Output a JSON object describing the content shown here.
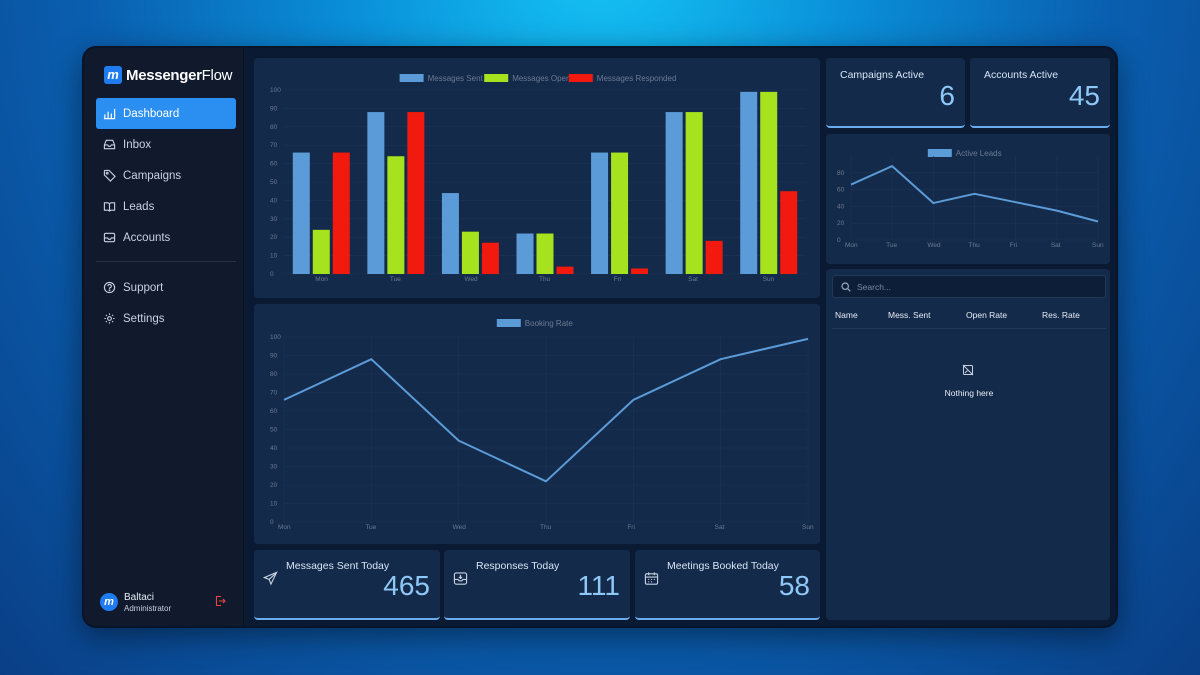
{
  "app": {
    "logo_bold": "Messenger",
    "logo_light": "Flow",
    "logo_mark": "m"
  },
  "nav": {
    "items": [
      {
        "label": "Dashboard",
        "icon": "bar-chart-icon",
        "active": true
      },
      {
        "label": "Inbox",
        "icon": "inbox-icon"
      },
      {
        "label": "Campaigns",
        "icon": "tag-icon"
      },
      {
        "label": "Leads",
        "icon": "book-icon"
      },
      {
        "label": "Accounts",
        "icon": "inbox-tray-icon"
      }
    ],
    "secondary": [
      {
        "label": "Support",
        "icon": "help-circle-icon"
      },
      {
        "label": "Settings",
        "icon": "gear-icon"
      }
    ]
  },
  "user": {
    "name": "Baltaci",
    "role": "Administrator",
    "initial": "m"
  },
  "stats": {
    "campaigns_active": {
      "label": "Campaigns Active",
      "value": "6"
    },
    "accounts_active": {
      "label": "Accounts Active",
      "value": "45"
    },
    "messages_sent_today": {
      "label": "Messages Sent Today",
      "value": "465"
    },
    "responses_today": {
      "label": "Responses Today",
      "value": "111"
    },
    "meetings_booked_today": {
      "label": "Meetings Booked Today",
      "value": "58"
    }
  },
  "leads_table": {
    "search_placeholder": "Search...",
    "columns": [
      "Name",
      "Mess. Sent",
      "Open Rate",
      "Res. Rate"
    ],
    "empty_text": "Nothing here"
  },
  "colors": {
    "sent": "#5b9bd8",
    "open": "#a6e31e",
    "responded": "#f2190e",
    "line": "#5b9bd8"
  },
  "chart_data": [
    {
      "type": "bar",
      "categories": [
        "Mon",
        "Tue",
        "Wed",
        "Thu",
        "Fri",
        "Sat",
        "Sun"
      ],
      "series": [
        {
          "name": "Messages Sent",
          "values": [
            66,
            88,
            44,
            22,
            66,
            88,
            99
          ]
        },
        {
          "name": "Messages Open",
          "values": [
            24,
            64,
            23,
            22,
            66,
            88,
            99
          ]
        },
        {
          "name": "Messages Responded",
          "values": [
            66,
            88,
            17,
            4,
            3,
            18,
            45
          ]
        }
      ],
      "ylim": [
        0,
        100
      ],
      "yticks": [
        0,
        10,
        20,
        30,
        40,
        50,
        60,
        70,
        80,
        90,
        100
      ],
      "legend": "top-center"
    },
    {
      "type": "line",
      "categories": [
        "Mon",
        "Tue",
        "Wed",
        "Thu",
        "Fri",
        "Sat",
        "Sun"
      ],
      "series": [
        {
          "name": "Booking Rate",
          "values": [
            66,
            88,
            44,
            22,
            66,
            88,
            99
          ]
        }
      ],
      "ylim": [
        0,
        100
      ],
      "yticks": [
        0,
        10,
        20,
        30,
        40,
        50,
        60,
        70,
        80,
        90,
        100
      ],
      "legend": "top-center"
    },
    {
      "type": "line",
      "categories": [
        "Mon",
        "Tue",
        "Wed",
        "Thu",
        "Fri",
        "Sat",
        "Sun"
      ],
      "series": [
        {
          "name": "Active Leads",
          "values": [
            66,
            88,
            44,
            55,
            45,
            35,
            22
          ]
        }
      ],
      "ylim": [
        0,
        100
      ],
      "yticks": [
        0,
        20,
        40,
        60,
        80
      ],
      "legend": "top-center"
    }
  ]
}
